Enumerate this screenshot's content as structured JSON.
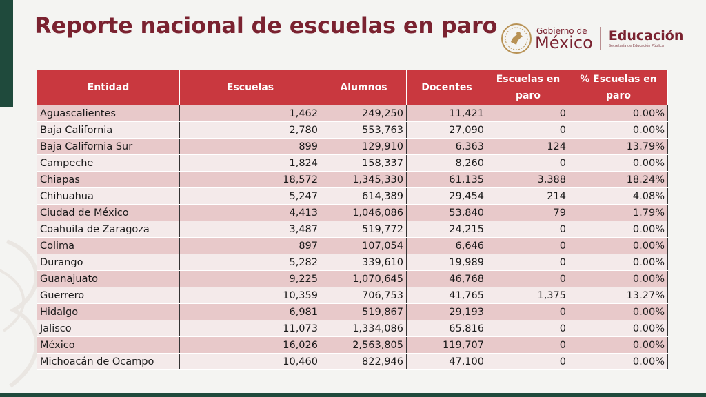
{
  "title": "Reporte nacional de escuelas en paro",
  "brand": {
    "gobierno_small": "Gobierno de",
    "gobierno_big": "México",
    "education": "Educación",
    "education_sub": "Secretaría de Educación Pública"
  },
  "colors": {
    "title": "#7a2230",
    "header_bg": "#c9383f",
    "row_odd": "#e8c9ca",
    "row_even": "#f4eaea",
    "accent_green": "#1f4a3c"
  },
  "table": {
    "headers": [
      "Entidad",
      "Escuelas",
      "Alumnos",
      "Docentes",
      "Escuelas en paro",
      "% Escuelas en paro"
    ],
    "rows": [
      [
        "Aguascalientes",
        "1,462",
        "249,250",
        "11,421",
        "0",
        "0.00%"
      ],
      [
        "Baja California",
        "2,780",
        "553,763",
        "27,090",
        "0",
        "0.00%"
      ],
      [
        "Baja California Sur",
        "899",
        "129,910",
        "6,363",
        "124",
        "13.79%"
      ],
      [
        "Campeche",
        "1,824",
        "158,337",
        "8,260",
        "0",
        "0.00%"
      ],
      [
        "Chiapas",
        "18,572",
        "1,345,330",
        "61,135",
        "3,388",
        "18.24%"
      ],
      [
        "Chihuahua",
        "5,247",
        "614,389",
        "29,454",
        "214",
        "4.08%"
      ],
      [
        "Ciudad de México",
        "4,413",
        "1,046,086",
        "53,840",
        "79",
        "1.79%"
      ],
      [
        "Coahuila de Zaragoza",
        "3,487",
        "519,772",
        "24,215",
        "0",
        "0.00%"
      ],
      [
        "Colima",
        "897",
        "107,054",
        "6,646",
        "0",
        "0.00%"
      ],
      [
        "Durango",
        "5,282",
        "339,610",
        "19,989",
        "0",
        "0.00%"
      ],
      [
        "Guanajuato",
        "9,225",
        "1,070,645",
        "46,768",
        "0",
        "0.00%"
      ],
      [
        "Guerrero",
        "10,359",
        "706,753",
        "41,765",
        "1,375",
        "13.27%"
      ],
      [
        "Hidalgo",
        "6,981",
        "519,867",
        "29,193",
        "0",
        "0.00%"
      ],
      [
        "Jalisco",
        "11,073",
        "1,334,086",
        "65,816",
        "0",
        "0.00%"
      ],
      [
        "México",
        "16,026",
        "2,563,805",
        "119,707",
        "0",
        "0.00%"
      ],
      [
        "Michoacán de Ocampo",
        "10,460",
        "822,946",
        "47,100",
        "0",
        "0.00%"
      ]
    ]
  }
}
